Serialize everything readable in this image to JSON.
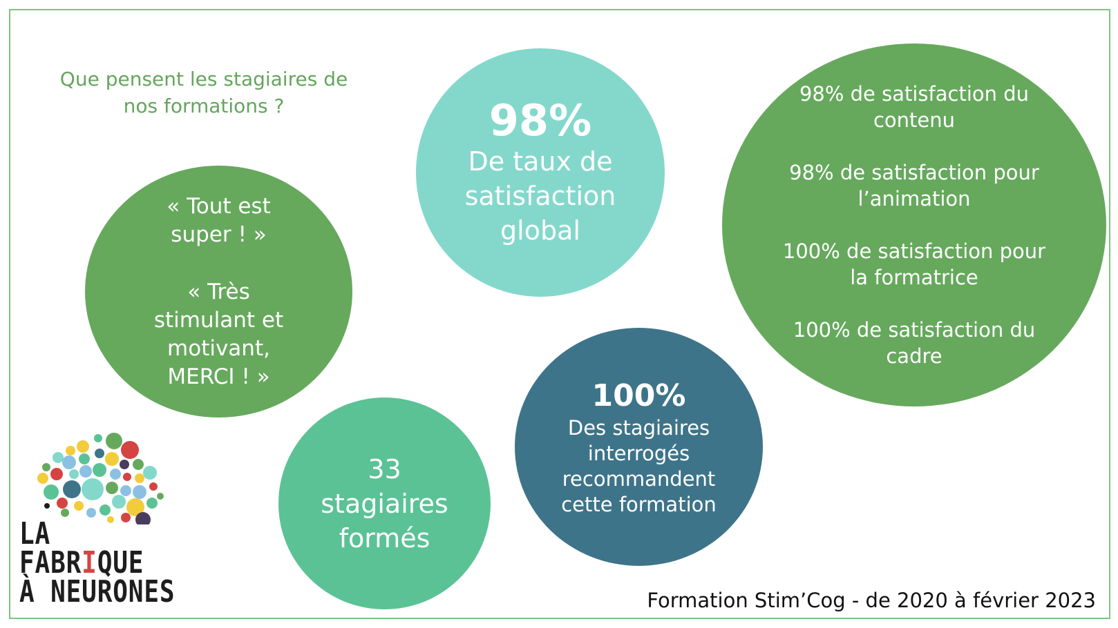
{
  "question": "Que pensent les stagiaires de nos formations ?",
  "quotes": [
    "« Tout est super ! »",
    "« Très stimulant et motivant, MERCI ! »"
  ],
  "global": {
    "value": "98%",
    "label": "De taux de satisfaction global"
  },
  "details": [
    "98% de satisfaction du contenu",
    "98% de satisfaction pour l’animation",
    "100% de satisfaction pour la formatrice",
    "100% de satisfaction du cadre"
  ],
  "trained": {
    "value": "33",
    "label": "stagiaires formés"
  },
  "recommend": {
    "value": "100%",
    "label": "Des stagiaires interrogés recommandent cette formation"
  },
  "footer": "Formation Stim’Cog -  de 2020 à février 2023",
  "logo": {
    "line1": "LA",
    "line2_before": "FABR",
    "line2_accent": "I",
    "line2_after": "QUE",
    "line3": "À NEURONES"
  },
  "colors": {
    "green": "#66a95d",
    "teal_light": "#83d8cb",
    "mint": "#5bc295",
    "petrol": "#3e7489",
    "question_text": "#64a55c"
  }
}
